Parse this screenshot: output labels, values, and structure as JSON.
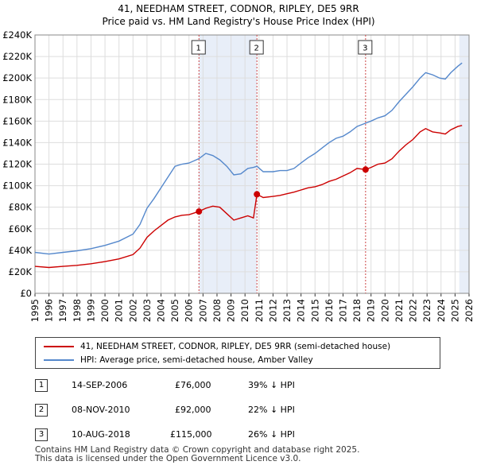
{
  "title_line1": "41, NEEDHAM STREET, CODNOR, RIPLEY, DE5 9RR",
  "title_line2": "Price paid vs. HM Land Registry's House Price Index (HPI)",
  "chart_data": {
    "type": "line",
    "x_ticks": [
      1995,
      1996,
      1997,
      1998,
      1999,
      2000,
      2001,
      2002,
      2003,
      2004,
      2005,
      2006,
      2007,
      2008,
      2009,
      2010,
      2011,
      2012,
      2013,
      2014,
      2015,
      2016,
      2017,
      2018,
      2019,
      2020,
      2021,
      2022,
      2023,
      2024,
      2025,
      2026
    ],
    "xlim": [
      1995,
      2026
    ],
    "ylim": [
      0,
      240000
    ],
    "y_ticks": [
      0,
      20000,
      40000,
      60000,
      80000,
      100000,
      120000,
      140000,
      160000,
      180000,
      200000,
      220000,
      240000
    ],
    "y_tick_labels": [
      "£0",
      "£20K",
      "£40K",
      "£60K",
      "£80K",
      "£100K",
      "£120K",
      "£140K",
      "£160K",
      "£180K",
      "£200K",
      "£220K",
      "£240K"
    ],
    "grid": true,
    "colors": {
      "property": "#cc0000",
      "hpi": "#5588cc",
      "shade": "#e8eef8",
      "event_line": "#cc4444"
    },
    "series": [
      {
        "name": "41, NEEDHAM STREET, CODNOR, RIPLEY, DE5 9RR (semi-detached house)",
        "color": "#cc0000",
        "points": [
          [
            1995.0,
            25000
          ],
          [
            1996.0,
            24000
          ],
          [
            1997.0,
            25000
          ],
          [
            1998.0,
            26000
          ],
          [
            1999.0,
            27500
          ],
          [
            2000.0,
            29500
          ],
          [
            2001.0,
            32000
          ],
          [
            2002.0,
            36000
          ],
          [
            2002.5,
            42000
          ],
          [
            2003.0,
            52000
          ],
          [
            2003.5,
            58000
          ],
          [
            2004.0,
            63000
          ],
          [
            2004.5,
            68000
          ],
          [
            2005.0,
            71000
          ],
          [
            2005.5,
            72500
          ],
          [
            2006.0,
            73000
          ],
          [
            2006.7,
            76000
          ],
          [
            2007.2,
            79000
          ],
          [
            2007.7,
            81000
          ],
          [
            2008.2,
            80000
          ],
          [
            2008.7,
            74000
          ],
          [
            2009.2,
            68000
          ],
          [
            2009.7,
            70000
          ],
          [
            2010.2,
            72000
          ],
          [
            2010.6,
            70000
          ],
          [
            2010.85,
            92000
          ],
          [
            2011.3,
            89000
          ],
          [
            2012.0,
            90000
          ],
          [
            2012.5,
            91000
          ],
          [
            2013.0,
            92500
          ],
          [
            2013.5,
            94000
          ],
          [
            2014.0,
            96000
          ],
          [
            2014.5,
            98000
          ],
          [
            2015.0,
            99000
          ],
          [
            2015.5,
            101000
          ],
          [
            2016.0,
            104000
          ],
          [
            2016.5,
            106000
          ],
          [
            2017.0,
            109000
          ],
          [
            2017.5,
            112000
          ],
          [
            2018.0,
            116000
          ],
          [
            2018.6,
            115000
          ],
          [
            2019.0,
            117000
          ],
          [
            2019.5,
            120000
          ],
          [
            2020.0,
            121000
          ],
          [
            2020.5,
            125000
          ],
          [
            2021.0,
            132000
          ],
          [
            2021.5,
            138000
          ],
          [
            2022.0,
            143000
          ],
          [
            2022.5,
            150000
          ],
          [
            2022.9,
            153000
          ],
          [
            2023.4,
            150000
          ],
          [
            2023.9,
            149000
          ],
          [
            2024.3,
            148000
          ],
          [
            2024.7,
            152000
          ],
          [
            2025.2,
            155000
          ],
          [
            2025.5,
            156000
          ]
        ]
      },
      {
        "name": "HPI: Average price, semi-detached house, Amber Valley",
        "color": "#5588cc",
        "points": [
          [
            1995.0,
            38000
          ],
          [
            1996.0,
            36500
          ],
          [
            1997.0,
            38000
          ],
          [
            1998.0,
            39500
          ],
          [
            1999.0,
            41500
          ],
          [
            2000.0,
            44500
          ],
          [
            2001.0,
            48500
          ],
          [
            2002.0,
            55000
          ],
          [
            2002.5,
            64000
          ],
          [
            2003.0,
            79000
          ],
          [
            2003.5,
            88000
          ],
          [
            2004.0,
            98000
          ],
          [
            2004.5,
            108000
          ],
          [
            2005.0,
            118000
          ],
          [
            2005.5,
            120000
          ],
          [
            2006.0,
            121000
          ],
          [
            2006.7,
            125000
          ],
          [
            2007.2,
            130000
          ],
          [
            2007.7,
            128000
          ],
          [
            2008.2,
            124000
          ],
          [
            2008.7,
            118000
          ],
          [
            2009.2,
            110000
          ],
          [
            2009.7,
            111000
          ],
          [
            2010.2,
            116000
          ],
          [
            2010.6,
            117000
          ],
          [
            2010.85,
            118000
          ],
          [
            2011.3,
            113000
          ],
          [
            2012.0,
            113000
          ],
          [
            2012.5,
            114000
          ],
          [
            2013.0,
            114000
          ],
          [
            2013.5,
            116000
          ],
          [
            2014.0,
            121000
          ],
          [
            2014.5,
            126000
          ],
          [
            2015.0,
            130000
          ],
          [
            2015.5,
            135000
          ],
          [
            2016.0,
            140000
          ],
          [
            2016.5,
            144000
          ],
          [
            2017.0,
            146000
          ],
          [
            2017.5,
            150000
          ],
          [
            2018.0,
            155000
          ],
          [
            2018.6,
            158000
          ],
          [
            2019.0,
            160000
          ],
          [
            2019.5,
            163000
          ],
          [
            2020.0,
            165000
          ],
          [
            2020.5,
            170000
          ],
          [
            2021.0,
            178000
          ],
          [
            2021.5,
            185000
          ],
          [
            2022.0,
            192000
          ],
          [
            2022.5,
            200000
          ],
          [
            2022.9,
            205000
          ],
          [
            2023.4,
            203000
          ],
          [
            2023.9,
            200000
          ],
          [
            2024.3,
            199000
          ],
          [
            2024.7,
            205000
          ],
          [
            2025.2,
            211000
          ],
          [
            2025.5,
            214000
          ]
        ]
      }
    ],
    "events": [
      {
        "label": "1",
        "x": 2006.71,
        "y": 76000
      },
      {
        "label": "2",
        "x": 2010.85,
        "y": 92000
      },
      {
        "label": "3",
        "x": 2018.61,
        "y": 115000
      }
    ],
    "shaded_ranges": [
      [
        2006.71,
        2010.85
      ],
      [
        2025.3,
        2026
      ]
    ]
  },
  "legend": {
    "property_label": "41, NEEDHAM STREET, CODNOR, RIPLEY, DE5 9RR (semi-detached house)",
    "hpi_label": "HPI: Average price, semi-detached house, Amber Valley"
  },
  "sales": [
    {
      "num": "1",
      "date": "14-SEP-2006",
      "price": "£76,000",
      "hpi": "39% ↓ HPI"
    },
    {
      "num": "2",
      "date": "08-NOV-2010",
      "price": "£92,000",
      "hpi": "22% ↓ HPI"
    },
    {
      "num": "3",
      "date": "10-AUG-2018",
      "price": "£115,000",
      "hpi": "26% ↓ HPI"
    }
  ],
  "footer_line1": "Contains HM Land Registry data © Crown copyright and database right 2025.",
  "footer_line2": "This data is licensed under the Open Government Licence v3.0."
}
